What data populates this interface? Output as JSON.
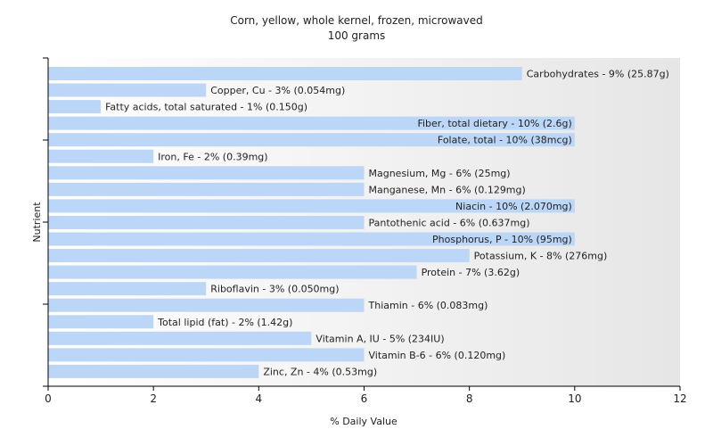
{
  "chart_data": {
    "type": "bar",
    "orientation": "horizontal",
    "title": "Corn, yellow, whole kernel, frozen, microwaved",
    "subtitle": "100 grams",
    "xlabel": "% Daily Value",
    "ylabel": "Nutrient",
    "xlim": [
      0,
      12
    ],
    "xticks": [
      "0",
      "2",
      "4",
      "6",
      "8",
      "10",
      "12"
    ],
    "grid": false,
    "bar_color": "#bcd6f7",
    "background_gradient": [
      "#ffffff",
      "#e6e6e6"
    ],
    "categories": [
      "Carbohydrates",
      "Copper, Cu",
      "Fatty acids, total saturated",
      "Fiber, total dietary",
      "Folate, total",
      "Iron, Fe",
      "Magnesium, Mg",
      "Manganese, Mn",
      "Niacin",
      "Pantothenic acid",
      "Phosphorus, P",
      "Potassium, K",
      "Protein",
      "Riboflavin",
      "Thiamin",
      "Total lipid (fat)",
      "Vitamin A, IU",
      "Vitamin B-6",
      "Zinc, Zn"
    ],
    "values": [
      9,
      3,
      1,
      10,
      10,
      2,
      6,
      6,
      10,
      6,
      10,
      8,
      7,
      3,
      6,
      2,
      5,
      6,
      4
    ],
    "labels": [
      "Carbohydrates - 9% (25.87g)",
      "Copper, Cu - 3% (0.054mg)",
      "Fatty acids, total saturated - 1% (0.150g)",
      "Fiber, total dietary - 10% (2.6g)",
      "Folate, total - 10% (38mcg)",
      "Iron, Fe - 2% (0.39mg)",
      "Magnesium, Mg - 6% (25mg)",
      "Manganese, Mn - 6% (0.129mg)",
      "Niacin - 10% (2.070mg)",
      "Pantothenic acid - 6% (0.637mg)",
      "Phosphorus, P - 10% (95mg)",
      "Potassium, K - 8% (276mg)",
      "Protein - 7% (3.62g)",
      "Riboflavin - 3% (0.050mg)",
      "Thiamin - 6% (0.083mg)",
      "Total lipid (fat) - 2% (1.42g)",
      "Vitamin A, IU - 5% (234IU)",
      "Vitamin B-6 - 6% (0.120mg)",
      "Zinc, Zn - 4% (0.53mg)"
    ]
  }
}
